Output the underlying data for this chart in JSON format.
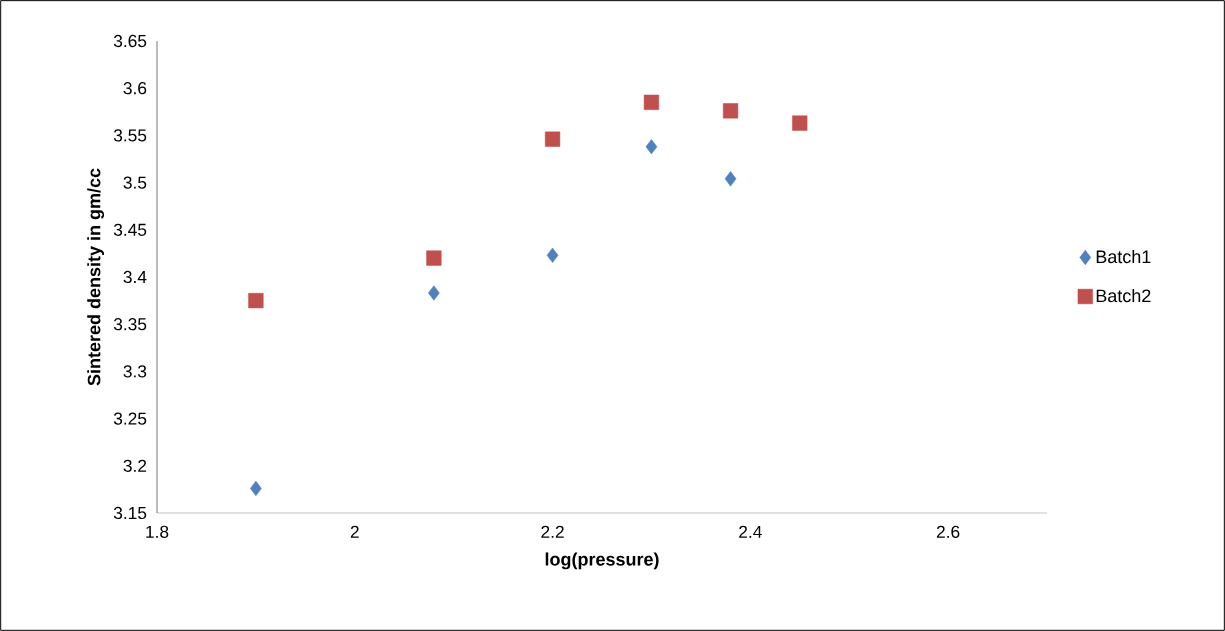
{
  "chart_data": {
    "type": "scatter",
    "xlabel": "log(pressure)",
    "ylabel": "Sintered density in gm/cc",
    "xlim": [
      1.8,
      2.7
    ],
    "xticks": [
      1.8,
      2,
      2.2,
      2.4,
      2.6
    ],
    "ylim": [
      3.15,
      3.65
    ],
    "yticks": [
      3.15,
      3.2,
      3.25,
      3.3,
      3.35,
      3.4,
      3.45,
      3.5,
      3.55,
      3.6,
      3.65
    ],
    "grid": false,
    "legend": "right",
    "series": [
      {
        "name": "Batch1",
        "color": "#4f81bd",
        "marker": "diamond",
        "x": [
          1.9,
          2.08,
          2.2,
          2.3,
          2.38
        ],
        "values": [
          3.176,
          3.383,
          3.423,
          3.538,
          3.504
        ]
      },
      {
        "name": "Batch2",
        "color": "#c0504d",
        "marker": "square",
        "x": [
          1.9,
          2.08,
          2.2,
          2.3,
          2.38,
          2.45
        ],
        "values": [
          3.375,
          3.42,
          3.546,
          3.585,
          3.576,
          3.563
        ]
      }
    ]
  }
}
